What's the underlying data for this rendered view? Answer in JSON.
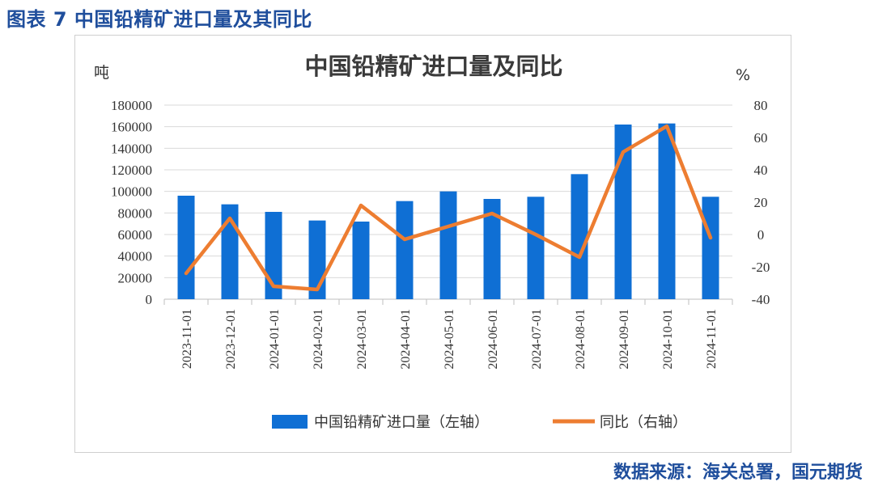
{
  "figure_caption": "图表 7 中国铅精矿进口量及其同比",
  "source_note": "数据来源：海关总署，国元期货",
  "colors": {
    "caption": "#1f4e9c",
    "bar": "#0f6fd4",
    "line": "#ed7d31",
    "grid": "#d9d9d9"
  },
  "chart_data": {
    "type": "bar+line",
    "title": "中国铅精矿进口量及同比",
    "y_left_unit": "吨",
    "y_right_unit": "%",
    "categories": [
      "2023-11-01",
      "2023-12-01",
      "2024-01-01",
      "2024-02-01",
      "2024-03-01",
      "2024-04-01",
      "2024-05-01",
      "2024-06-01",
      "2024-07-01",
      "2024-08-01",
      "2024-09-01",
      "2024-10-01",
      "2024-11-01"
    ],
    "series": [
      {
        "name": "中国铅精矿进口量（左轴）",
        "type": "bar",
        "axis": "left",
        "values": [
          96000,
          88000,
          81000,
          73000,
          72000,
          91000,
          100000,
          93000,
          95000,
          116000,
          162000,
          163000,
          95000
        ]
      },
      {
        "name": "同比（右轴）",
        "type": "line",
        "axis": "right",
        "values": [
          -24,
          10,
          -32,
          -34,
          18,
          -3,
          5,
          13,
          0,
          -14,
          51,
          67,
          -2
        ]
      }
    ],
    "y_left": {
      "min": 0,
      "max": 180000,
      "ticks": [
        "180000",
        "160000",
        "140000",
        "120000",
        "100000",
        "80000",
        "60000",
        "40000",
        "20000",
        "0"
      ]
    },
    "y_right": {
      "min": -40,
      "max": 80,
      "ticks": [
        "80",
        "60",
        "40",
        "20",
        "0",
        "-20",
        "-40"
      ]
    },
    "grid": true,
    "legend_position": "bottom"
  }
}
